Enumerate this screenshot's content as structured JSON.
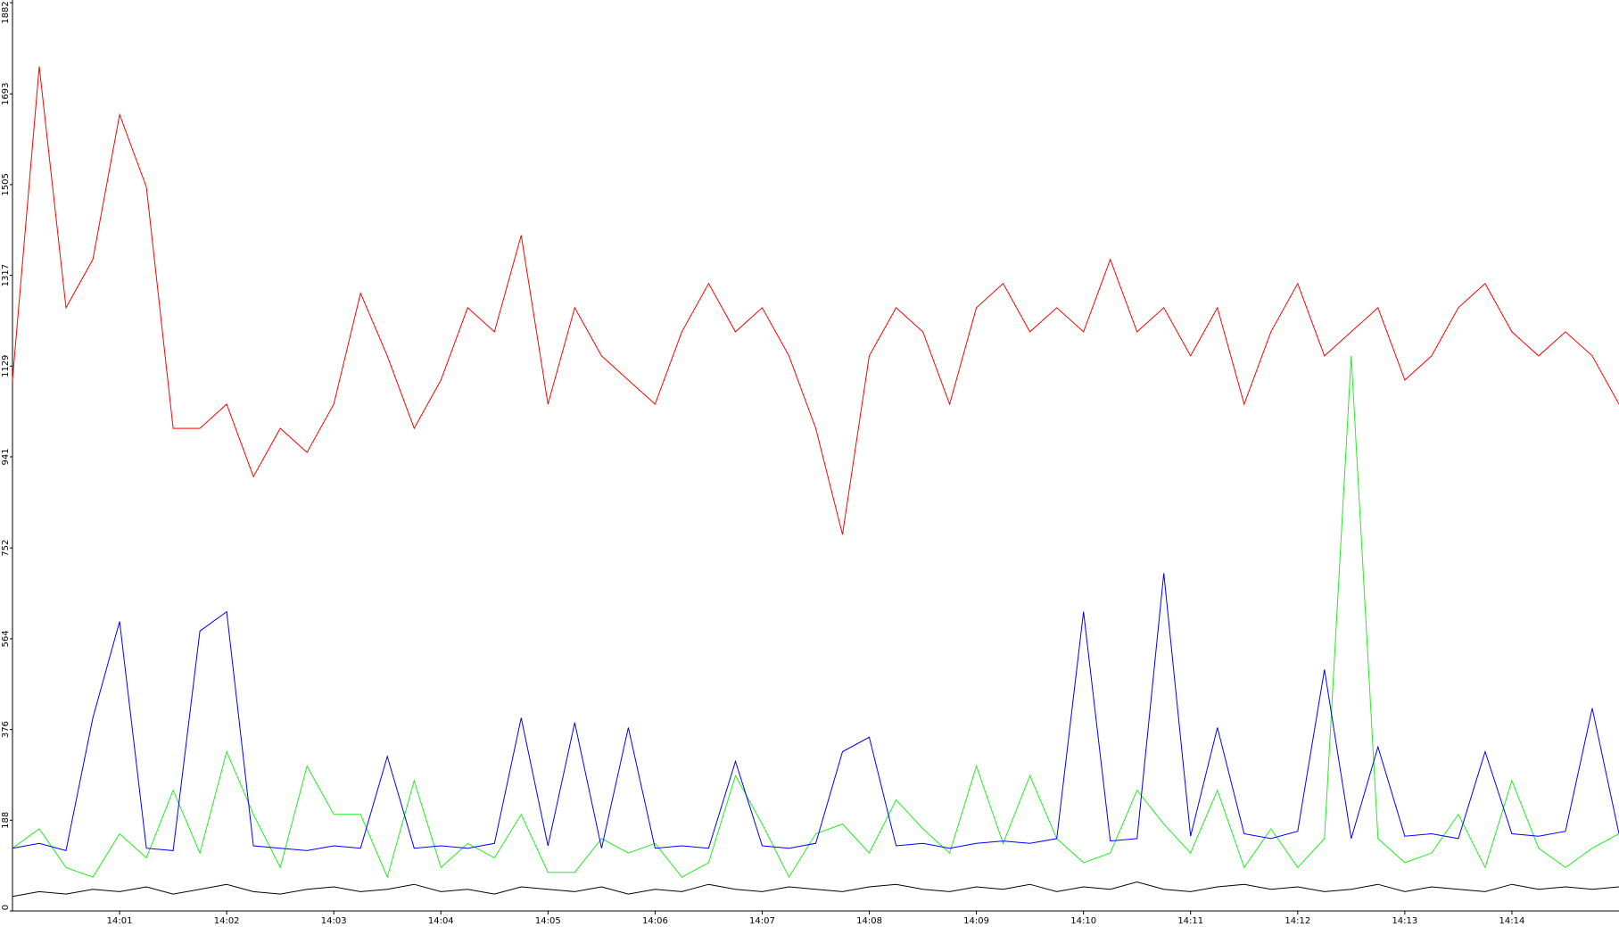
{
  "chart_data": {
    "type": "line",
    "x": [
      840,
      840.25,
      840.5,
      840.75,
      841,
      841.25,
      841.5,
      841.75,
      842,
      842.25,
      842.5,
      842.75,
      843,
      843.25,
      843.5,
      843.75,
      844,
      844.25,
      844.5,
      844.75,
      845,
      845.25,
      845.5,
      845.75,
      846,
      846.25,
      846.5,
      846.75,
      847,
      847.25,
      847.5,
      847.75,
      848,
      848.25,
      848.5,
      848.75,
      849,
      849.25,
      849.5,
      849.75,
      850,
      850.25,
      850.5,
      850.75,
      851,
      851.25,
      851.5,
      851.75,
      852,
      852.25,
      852.5,
      852.75,
      853,
      853.25,
      853.5,
      853.75,
      854,
      854.25,
      854.5,
      854.75,
      855
    ],
    "series": [
      {
        "color": "#000000",
        "values": [
          30,
          40,
          35,
          45,
          40,
          50,
          35,
          45,
          55,
          40,
          35,
          45,
          50,
          40,
          45,
          55,
          40,
          45,
          35,
          50,
          45,
          40,
          50,
          35,
          45,
          40,
          55,
          45,
          40,
          50,
          45,
          40,
          50,
          55,
          45,
          40,
          50,
          45,
          55,
          40,
          50,
          45,
          60,
          45,
          40,
          50,
          55,
          45,
          50,
          40,
          45,
          55,
          40,
          50,
          45,
          40,
          55,
          45,
          50,
          45,
          50
        ]
      },
      {
        "color": "#22ee22",
        "values": [
          130,
          170,
          90,
          70,
          160,
          110,
          250,
          120,
          330,
          200,
          90,
          300,
          200,
          200,
          70,
          270,
          90,
          140,
          110,
          200,
          80,
          80,
          150,
          120,
          140,
          70,
          100,
          280,
          180,
          70,
          160,
          180,
          120,
          230,
          170,
          120,
          300,
          140,
          280,
          150,
          100,
          120,
          250,
          180,
          120,
          250,
          90,
          170,
          90,
          150,
          1150,
          150,
          100,
          120,
          200,
          90,
          270,
          130,
          90,
          130,
          160
        ]
      },
      {
        "color": "#0000ff",
        "values": [
          130,
          140,
          125,
          400,
          600,
          130,
          125,
          580,
          620,
          135,
          130,
          125,
          135,
          130,
          320,
          130,
          135,
          130,
          140,
          400,
          135,
          390,
          130,
          380,
          130,
          135,
          130,
          310,
          135,
          130,
          140,
          330,
          360,
          135,
          140,
          130,
          140,
          145,
          140,
          150,
          620,
          145,
          150,
          700,
          155,
          380,
          160,
          150,
          165,
          500,
          150,
          340,
          155,
          160,
          150,
          330,
          160,
          155,
          165,
          420,
          160
        ]
      },
      {
        "color": "#ff0000",
        "values": [
          1100,
          1750,
          1250,
          1350,
          1650,
          1500,
          1000,
          1000,
          1050,
          900,
          1000,
          950,
          1050,
          1280,
          1150,
          1000,
          1100,
          1250,
          1200,
          1400,
          1050,
          1250,
          1150,
          1100,
          1050,
          1200,
          1300,
          1200,
          1250,
          1150,
          1000,
          780,
          1150,
          1250,
          1200,
          1050,
          1250,
          1300,
          1200,
          1250,
          1200,
          1350,
          1200,
          1250,
          1150,
          1250,
          1050,
          1200,
          1300,
          1150,
          1200,
          1250,
          1100,
          1150,
          1250,
          1300,
          1200,
          1150,
          1200,
          1150,
          1050
        ]
      }
    ],
    "xlim": [
      840,
      855
    ],
    "xticks": [
      {
        "value": 841,
        "label": "14:01"
      },
      {
        "value": 842,
        "label": "14:02"
      },
      {
        "value": 843,
        "label": "14:03"
      },
      {
        "value": 844,
        "label": "14:04"
      },
      {
        "value": 845,
        "label": "14:05"
      },
      {
        "value": 846,
        "label": "14:06"
      },
      {
        "value": 847,
        "label": "14:07"
      },
      {
        "value": 848,
        "label": "14:08"
      },
      {
        "value": 849,
        "label": "14:09"
      },
      {
        "value": 850,
        "label": "14:10"
      },
      {
        "value": 851,
        "label": "14:11"
      },
      {
        "value": 852,
        "label": "14:12"
      },
      {
        "value": 853,
        "label": "14:13"
      },
      {
        "value": 854,
        "label": "14:14"
      }
    ],
    "ylim": [
      0,
      1882
    ],
    "yticks": [
      0,
      188,
      376,
      564,
      752,
      941,
      1129,
      1317,
      1505,
      1693,
      1882
    ]
  }
}
